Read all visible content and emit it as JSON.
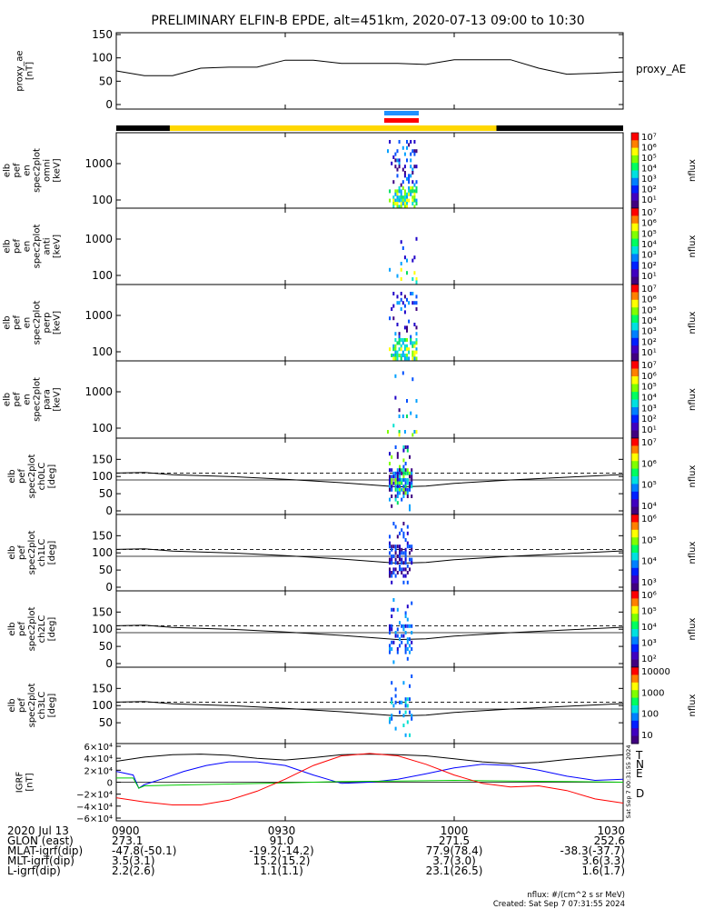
{
  "title": "PRELIMINARY ELFIN-B EPDE, alt=451km, 2020-07-13 09:00 to 10:30",
  "colors": {
    "sci_zone": "#ffd700",
    "dark_zone": "#000000",
    "bar_blue": "#1e90ff",
    "bar_red": "#ff0000",
    "grf_T": "#000000",
    "grf_N": "#0000ff",
    "grf_E": "#00cc00",
    "grf_D": "#ff0000"
  },
  "chart_data": [
    {
      "id": "proxy_ae",
      "type": "line",
      "ylabel": "proxy_ae [nT]",
      "series_label": "proxy_AE",
      "ylim": [
        0,
        150
      ],
      "yticks": [
        "150",
        "100",
        "50",
        "0"
      ],
      "x": [
        0,
        5,
        10,
        15,
        20,
        25,
        30,
        35,
        40,
        45,
        50,
        55,
        60,
        65,
        70,
        75,
        80,
        85,
        90
      ],
      "values": [
        72,
        62,
        62,
        78,
        80,
        80,
        95,
        95,
        88,
        88,
        88,
        86,
        96,
        96,
        96,
        78,
        65,
        67,
        70
      ]
    },
    {
      "id": "omni",
      "type": "heatmap",
      "ylabel": "elb pef en spec2plot omni [keV]",
      "yticks": [
        "1000",
        "100"
      ],
      "colorbar": {
        "label": "nflux",
        "ticks": [
          "10⁷",
          "10⁶",
          "10⁵",
          "10⁴",
          "10³",
          "10²",
          "10¹"
        ]
      }
    },
    {
      "id": "anti",
      "type": "heatmap",
      "ylabel": "elb pef en spec2plot anti [keV]",
      "yticks": [
        "1000",
        "100"
      ],
      "colorbar": {
        "label": "nflux",
        "ticks": [
          "10⁷",
          "10⁶",
          "10⁵",
          "10⁴",
          "10³",
          "10²",
          "10¹"
        ]
      }
    },
    {
      "id": "perp",
      "type": "heatmap",
      "ylabel": "elb pef en spec2plot perp [keV]",
      "yticks": [
        "1000",
        "100"
      ],
      "colorbar": {
        "label": "nflux",
        "ticks": [
          "10⁷",
          "10⁶",
          "10⁵",
          "10⁴",
          "10³",
          "10²",
          "10¹"
        ]
      }
    },
    {
      "id": "para",
      "type": "heatmap",
      "ylabel": "elb pef en spec2plot para [keV]",
      "yticks": [
        "1000",
        "100"
      ],
      "colorbar": {
        "label": "nflux",
        "ticks": [
          "10⁷",
          "10⁶",
          "10⁵",
          "10⁴",
          "10³",
          "10²",
          "10¹"
        ]
      }
    },
    {
      "id": "ch0",
      "type": "heatmap",
      "ylabel": "elb pef spec2plot ch0LC [deg]",
      "yticks": [
        "150",
        "100",
        "50",
        "0"
      ],
      "colorbar": {
        "label": "nflux",
        "ticks": [
          "10⁷",
          "10⁶",
          "10⁵",
          "10⁴"
        ]
      }
    },
    {
      "id": "ch1",
      "type": "heatmap",
      "ylabel": "elb pef spec2plot ch1LC [deg]",
      "yticks": [
        "150",
        "100",
        "50",
        "0"
      ],
      "colorbar": {
        "label": "nflux",
        "ticks": [
          "10⁶",
          "10⁵",
          "10⁴",
          "10³"
        ]
      }
    },
    {
      "id": "ch2",
      "type": "heatmap",
      "ylabel": "elb pef spec2plot ch2LC [deg]",
      "yticks": [
        "150",
        "100",
        "50",
        "0"
      ],
      "colorbar": {
        "label": "nflux",
        "ticks": [
          "10⁶",
          "10⁵",
          "10⁴",
          "10³",
          "10²"
        ]
      }
    },
    {
      "id": "ch3",
      "type": "heatmap",
      "ylabel": "elb pef spec2plot ch3LC [deg]",
      "yticks": [
        "150",
        "100",
        "50"
      ],
      "colorbar": {
        "label": "nflux",
        "ticks": [
          "10000",
          "1000",
          "100",
          "10"
        ]
      }
    },
    {
      "id": "igrf",
      "type": "line",
      "ylabel": "IGRF [nT]",
      "yticks": [
        "6×10⁴",
        "4×10⁴",
        "2×10⁴",
        "0",
        "−2×10⁴",
        "−4×10⁴",
        "−6×10⁴"
      ],
      "ylim": [
        -60000,
        60000
      ],
      "series": [
        {
          "name": "T",
          "x": [
            0,
            5,
            10,
            15,
            20,
            25,
            30,
            35,
            40,
            45,
            50,
            55,
            60,
            65,
            70,
            75,
            80,
            85,
            90
          ],
          "values": [
            35000,
            42000,
            46000,
            47000,
            45000,
            40000,
            37000,
            41000,
            46000,
            47000,
            46000,
            44000,
            39000,
            34000,
            31000,
            33000,
            38000,
            42000,
            46000
          ]
        },
        {
          "name": "N",
          "x": [
            0,
            3,
            4,
            5,
            8,
            12,
            16,
            20,
            25,
            30,
            35,
            40,
            45,
            50,
            55,
            60,
            65,
            70,
            75,
            80,
            85,
            90
          ],
          "values": [
            18000,
            12000,
            -10000,
            -4000,
            5000,
            18000,
            28000,
            34000,
            34000,
            28000,
            12000,
            -2000,
            0,
            5000,
            14000,
            24000,
            30000,
            28000,
            20000,
            10000,
            3000,
            5000
          ]
        },
        {
          "name": "E",
          "x": [
            0,
            3,
            4,
            5,
            10,
            20,
            30,
            40,
            50,
            60,
            70,
            80,
            90
          ],
          "values": [
            7000,
            7000,
            -10000,
            -6000,
            -5000,
            -3000,
            -1000,
            1000,
            2000,
            3000,
            2000,
            1000,
            0
          ]
        },
        {
          "name": "D",
          "x": [
            0,
            5,
            10,
            15,
            20,
            25,
            30,
            35,
            40,
            45,
            50,
            55,
            60,
            65,
            70,
            75,
            80,
            85,
            90
          ],
          "values": [
            -26000,
            -33000,
            -38000,
            -38000,
            -30000,
            -15000,
            5000,
            28000,
            44000,
            48000,
            44000,
            30000,
            12000,
            -2000,
            -8000,
            -6000,
            -14000,
            -28000,
            -35000
          ]
        }
      ]
    }
  ],
  "bottom": {
    "rows": [
      {
        "label": "2020 Jul 13",
        "values": [
          "0900",
          "0930",
          "1000",
          "1030"
        ]
      },
      {
        "label": "GLON (east)",
        "values": [
          "273.1",
          "91.0",
          "271.5",
          "252.6"
        ]
      },
      {
        "label": "MLAT-igrf(dip)",
        "values": [
          "-47.8(-50.1)",
          "-19.2(-14.2)",
          "77.9(78.4)",
          "-38.3(-37.7)"
        ]
      },
      {
        "label": "MLT-igrf(dip)",
        "values": [
          "3.5(3.1)",
          "15.2(15.2)",
          "3.7(3.0)",
          "3.6(3.3)"
        ]
      },
      {
        "label": "L-igrf(dip)",
        "values": [
          "2.2(2.6)",
          "1.1(1.1)",
          "23.1(26.5)",
          "1.6(1.7)"
        ]
      }
    ],
    "units_note": "nflux: #/(cm^2 s sr MeV)",
    "created": "Created: Sat Sep  7 07:31:55 2024",
    "side_stamp": "Sat Sep  7 00:31:55 2024"
  }
}
